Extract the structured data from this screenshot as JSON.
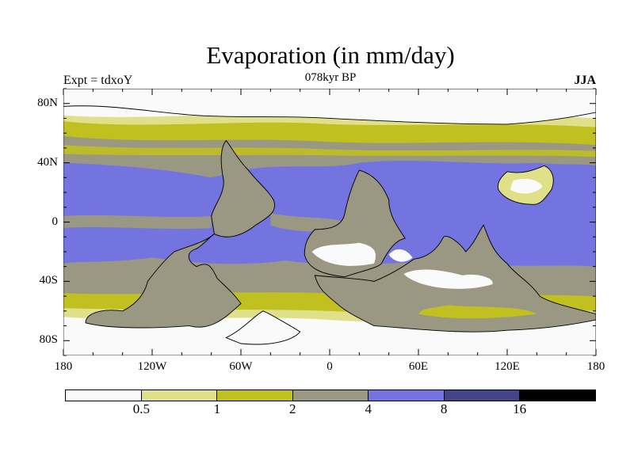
{
  "title": "Evaporation (in mm/day)",
  "subtitle_left": "Expt = tdxoY",
  "subtitle_center": "078kyr BP",
  "subtitle_right": "JJA",
  "chart_data": {
    "type": "heatmap",
    "projection": "cylindrical equidistant",
    "variable": "Evaporation (mm/day)",
    "xlim": [
      -180,
      180
    ],
    "ylim": [
      -90,
      90
    ],
    "x_ticks": [
      {
        "v": -180,
        "label": "180"
      },
      {
        "v": -120,
        "label": "120W"
      },
      {
        "v": -60,
        "label": "60W"
      },
      {
        "v": 0,
        "label": "0"
      },
      {
        "v": 60,
        "label": "60E"
      },
      {
        "v": 120,
        "label": "120E"
      },
      {
        "v": 180,
        "label": "180"
      }
    ],
    "y_ticks": [
      {
        "v": 80,
        "label": "80N"
      },
      {
        "v": 40,
        "label": "40N"
      },
      {
        "v": 0,
        "label": "0"
      },
      {
        "v": -40,
        "label": "40S"
      },
      {
        "v": -80,
        "label": "80S"
      }
    ],
    "colorbar": {
      "levels": [
        "0.5",
        "1",
        "2",
        "4",
        "8",
        "16"
      ],
      "colors": [
        "#fafafa",
        "#e0e08a",
        "#c0c020",
        "#9a9882",
        "#7474e0",
        "#454488",
        "#000000"
      ]
    }
  }
}
